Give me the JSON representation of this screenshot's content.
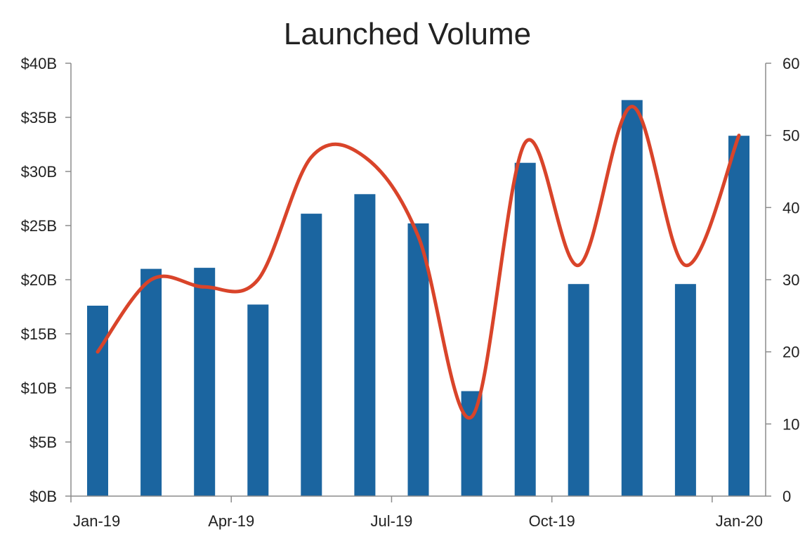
{
  "chart_data": {
    "type": "bar",
    "title": "Launched Volume",
    "categories": [
      "Jan-19",
      "Feb-19",
      "Mar-19",
      "Apr-19",
      "May-19",
      "Jun-19",
      "Jul-19",
      "Aug-19",
      "Sep-19",
      "Oct-19",
      "Nov-19",
      "Dec-19",
      "Jan-20"
    ],
    "x_tick_labels": [
      "Jan-19",
      "Apr-19",
      "Jul-19",
      "Oct-19",
      "Jan-20"
    ],
    "series": [
      {
        "type": "bar",
        "axis": "left",
        "color": "#1b65a0",
        "values": [
          17.6,
          21.0,
          21.1,
          17.7,
          26.1,
          27.9,
          25.2,
          9.7,
          30.8,
          19.6,
          36.6,
          19.6,
          33.3
        ]
      },
      {
        "type": "line",
        "axis": "right",
        "smooth": true,
        "color": "#d9442a",
        "values": [
          20,
          30,
          29,
          30,
          47,
          47,
          36,
          11,
          49,
          32,
          54,
          32,
          50
        ]
      }
    ],
    "y_left": {
      "lim": [
        0,
        40
      ],
      "step": 5,
      "tick_labels": [
        "$0B",
        "$5B",
        "$10B",
        "$15B",
        "$20B",
        "$25B",
        "$30B",
        "$35B",
        "$40B"
      ]
    },
    "y_right": {
      "lim": [
        0,
        60
      ],
      "step": 10,
      "tick_labels": [
        "0",
        "10",
        "20",
        "30",
        "40",
        "50",
        "60"
      ]
    },
    "grid": false,
    "legend": "none"
  }
}
